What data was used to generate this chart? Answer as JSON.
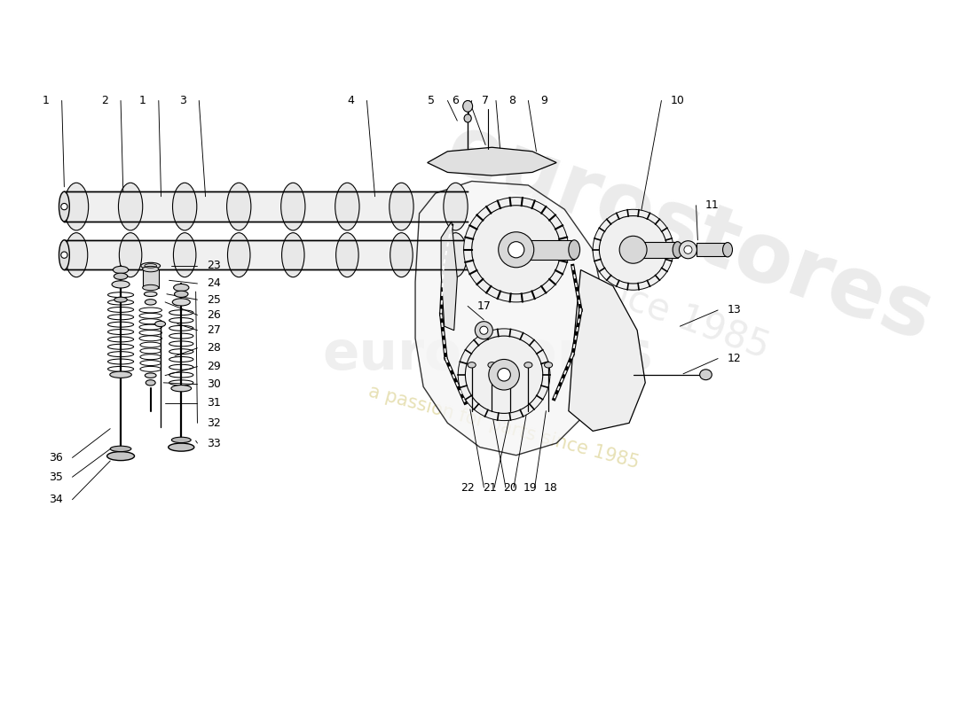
{
  "title": "",
  "background_color": "#ffffff",
  "watermark_line1": "eurostores",
  "watermark_line2": "a passion for parts since 1985",
  "line_color": "#000000",
  "drawing_color": "#000000",
  "label_color": "#000000",
  "watermark_color1": "#c8c8c8",
  "watermark_color2": "#d4c87a"
}
